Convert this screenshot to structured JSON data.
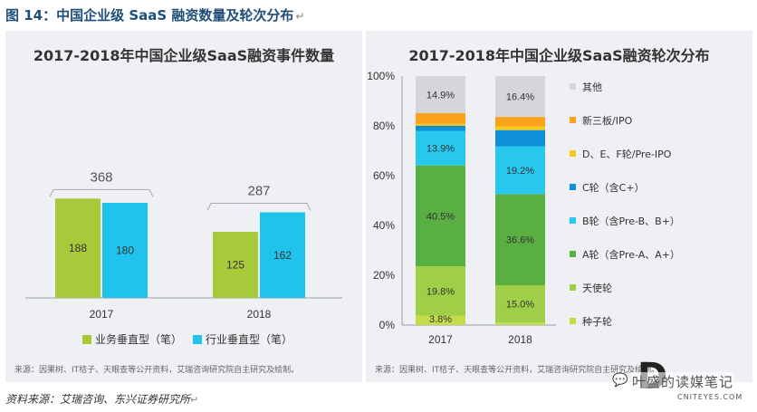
{
  "figure": {
    "title": "图 14：中国企业级 SaaS 融资数量及轮次分布",
    "return_mark": "↵"
  },
  "footer": {
    "text": "资料来源：艾瑞咨询、东兴证券研究所",
    "return_mark": "↵"
  },
  "watermark": {
    "chinese": "叶盛的读媒笔记",
    "english": "CNITEYES.COM",
    "logo": "D",
    "icon": "wechat-bubble-icon"
  },
  "chart_data": [
    {
      "type": "bar",
      "title": "2017-2018年中国企业级SaaS融资事件数量",
      "categories": [
        "2017",
        "2018"
      ],
      "series": [
        {
          "name": "业务垂直型（笔）",
          "values": [
            188,
            125
          ],
          "color": "#a8c93a"
        },
        {
          "name": "行业垂直型（笔）",
          "values": [
            180,
            162
          ],
          "color": "#1fc3ec"
        }
      ],
      "totals": [
        368,
        287
      ],
      "ylim": [
        0,
        420
      ],
      "grid": false,
      "legend": "bottom",
      "source": "来源：因果树、IT桔子、天眼查等公开资料，艾瑞咨询研究院自主研究及绘制。"
    },
    {
      "type": "bar",
      "stacked": true,
      "title": "2017-2018年中国企业级SaaS融资轮次分布",
      "categories": [
        "2017",
        "2018"
      ],
      "ylim": [
        0,
        100
      ],
      "yticks": [
        "0%",
        "20%",
        "40%",
        "60%",
        "80%",
        "100%"
      ],
      "series": [
        {
          "name": "种子轮",
          "values": [
            3.8,
            1.0
          ],
          "labels": [
            "3.8%",
            "1.0%"
          ],
          "color": "#c3dc4a"
        },
        {
          "name": "天使轮",
          "values": [
            19.8,
            15.0
          ],
          "labels": [
            "19.8%",
            "15.0%"
          ],
          "color": "#9fcf48"
        },
        {
          "name": "A轮（含Pre-A、A+）",
          "values": [
            40.5,
            36.6
          ],
          "labels": [
            "40.5%",
            "36.6%"
          ],
          "color": "#5aaf42"
        },
        {
          "name": "B轮（含Pre-B、B+）",
          "values": [
            13.9,
            19.2
          ],
          "labels": [
            "13.9%",
            "19.2%"
          ],
          "color": "#28c7ee"
        },
        {
          "name": "C轮（含C+）",
          "values": [
            2.0,
            6.5
          ],
          "labels": [
            "",
            ""
          ],
          "color": "#0e8fd6"
        },
        {
          "name": "D、E、F轮/Pre-IPO",
          "values": [
            0.8,
            1.5
          ],
          "labels": [
            "",
            ""
          ],
          "color": "#f7c81e"
        },
        {
          "name": "新三板/IPO",
          "values": [
            4.3,
            3.8
          ],
          "labels": [
            "",
            ""
          ],
          "color": "#f9a21a"
        },
        {
          "name": "其他",
          "values": [
            14.9,
            16.4
          ],
          "labels": [
            "14.9%",
            "16.4%"
          ],
          "color": "#d6d6da"
        }
      ],
      "grid": false,
      "legend": "right",
      "source": "来源：因果树、IT桔子、天眼查等公开资料，艾瑞咨询研究院自主研究及绘制。"
    }
  ]
}
